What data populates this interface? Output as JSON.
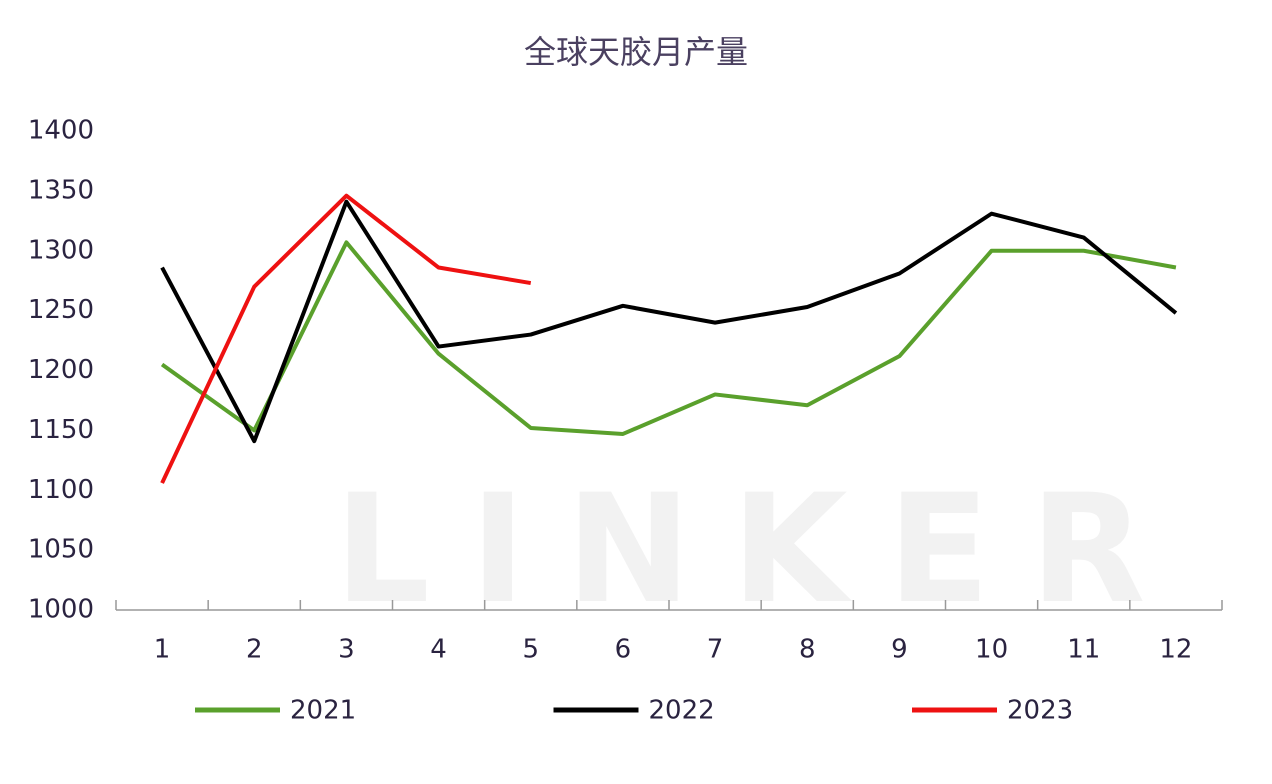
{
  "chart_data": {
    "type": "line",
    "title": "全球天胶月产量",
    "watermark": "LINKER",
    "categories": [
      "1",
      "2",
      "3",
      "4",
      "5",
      "6",
      "7",
      "8",
      "9",
      "10",
      "11",
      "12"
    ],
    "series": [
      {
        "name": "2021",
        "color": "#5aa02c",
        "values": [
          1205,
          1150,
          1307,
          1214,
          1152,
          1147,
          1180,
          1171,
          1212,
          1300,
          1300,
          1286
        ]
      },
      {
        "name": "2022",
        "color": "#000000",
        "values": [
          1286,
          1141,
          1341,
          1220,
          1230,
          1254,
          1240,
          1253,
          1281,
          1331,
          1311,
          1248
        ]
      },
      {
        "name": "2023",
        "color": "#ee1111",
        "values": [
          1106,
          1270,
          1346,
          1286,
          1273,
          null,
          null,
          null,
          null,
          null,
          null,
          null
        ]
      }
    ],
    "ylim": [
      1000,
      1400
    ],
    "yticks": [
      1000,
      1050,
      1100,
      1150,
      1200,
      1250,
      1300,
      1350,
      1400
    ],
    "grid": false,
    "legend": "bottom"
  }
}
